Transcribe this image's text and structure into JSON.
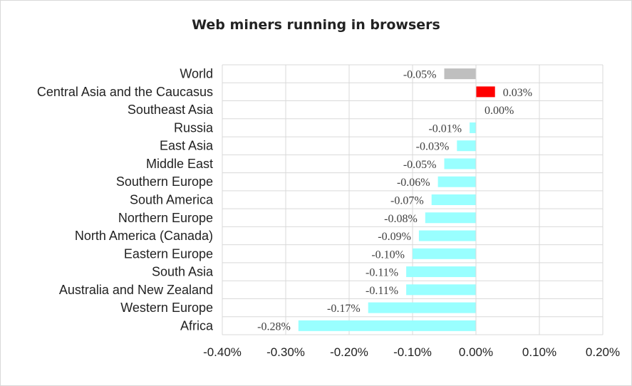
{
  "chart_data": {
    "type": "bar",
    "orientation": "horizontal",
    "title": "Web miners running in browsers",
    "xlabel": "",
    "ylabel": "",
    "xlim": [
      -0.4,
      0.2
    ],
    "x_ticks": [
      -0.4,
      -0.3,
      -0.2,
      -0.1,
      0.0,
      0.1,
      0.2
    ],
    "x_tick_labels": [
      "-0.40%",
      "-0.30%",
      "-0.20%",
      "-0.10%",
      "0.00%",
      "0.10%",
      "0.20%"
    ],
    "grid": true,
    "categories": [
      "World",
      "Central Asia and the Caucasus",
      "Southeast Asia",
      "Russia",
      "East Asia",
      "Middle East",
      "Southern Europe",
      "South America",
      "Northern Europe",
      "North America (Canada)",
      "Eastern Europe",
      "South Asia",
      "Australia and New Zealand",
      "Western Europe",
      "Africa"
    ],
    "values": [
      -0.05,
      0.03,
      0.0,
      -0.01,
      -0.03,
      -0.05,
      -0.06,
      -0.07,
      -0.08,
      -0.09,
      -0.1,
      -0.11,
      -0.11,
      -0.17,
      -0.28
    ],
    "value_labels": [
      "-0.05%",
      "0.03%",
      "0.00%",
      "-0.01%",
      "-0.03%",
      "-0.05%",
      "-0.06%",
      "-0.07%",
      "-0.08%",
      "-0.09%",
      "-0.10%",
      "-0.11%",
      "-0.11%",
      "-0.17%",
      "-0.28%"
    ],
    "colors": [
      "#bfbfbf",
      "#ff0000",
      "#99ffff",
      "#99ffff",
      "#99ffff",
      "#99ffff",
      "#99ffff",
      "#99ffff",
      "#99ffff",
      "#99ffff",
      "#99ffff",
      "#99ffff",
      "#99ffff",
      "#99ffff",
      "#99ffff"
    ]
  }
}
